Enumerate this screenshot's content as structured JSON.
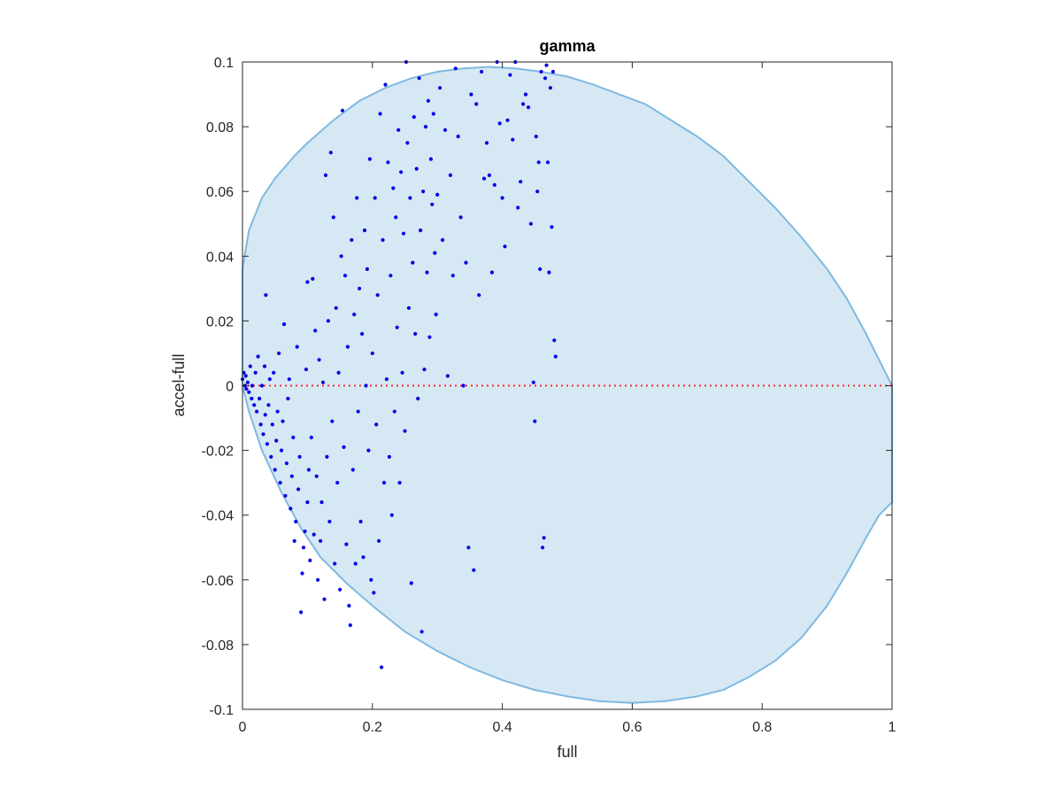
{
  "chart_data": {
    "type": "scatter",
    "title": "gamma",
    "xlabel": "full",
    "ylabel": "accel-full",
    "xlim": [
      0,
      1
    ],
    "ylim": [
      -0.1,
      0.1
    ],
    "xticks": [
      0,
      0.2,
      0.4,
      0.6,
      0.8,
      1
    ],
    "xtick_labels": [
      "0",
      "0.2",
      "0.4",
      "0.6",
      "0.8",
      "1"
    ],
    "yticks": [
      -0.1,
      -0.08,
      -0.06,
      -0.04,
      -0.02,
      0,
      0.02,
      0.04,
      0.06,
      0.08,
      0.1
    ],
    "ytick_labels": [
      "-0.1",
      "-0.08",
      "-0.06",
      "-0.04",
      "-0.02",
      "0",
      "0.02",
      "0.04",
      "0.06",
      "0.08",
      "0.1"
    ],
    "grid": false,
    "colors": {
      "points": "#0000e6",
      "region_fill": "#d6e8f4",
      "region_edge": "#7fb9e0",
      "zero_line": "#ff2a2a",
      "axes": "#262626"
    },
    "reference_line": {
      "y": 0,
      "style": "dotted"
    },
    "shaded_region": {
      "upper": [
        [
          0,
          0.036
        ],
        [
          0.01,
          0.048
        ],
        [
          0.03,
          0.058
        ],
        [
          0.05,
          0.064
        ],
        [
          0.08,
          0.071
        ],
        [
          0.1,
          0.075
        ],
        [
          0.14,
          0.082
        ],
        [
          0.18,
          0.088
        ],
        [
          0.22,
          0.092
        ],
        [
          0.26,
          0.095
        ],
        [
          0.3,
          0.097
        ],
        [
          0.34,
          0.098
        ],
        [
          0.38,
          0.0985
        ],
        [
          0.42,
          0.098
        ],
        [
          0.46,
          0.097
        ],
        [
          0.5,
          0.0955
        ],
        [
          0.54,
          0.093
        ],
        [
          0.58,
          0.09
        ],
        [
          0.62,
          0.087
        ],
        [
          0.66,
          0.082
        ],
        [
          0.7,
          0.077
        ],
        [
          0.74,
          0.071
        ],
        [
          0.78,
          0.063
        ],
        [
          0.82,
          0.055
        ],
        [
          0.86,
          0.046
        ],
        [
          0.9,
          0.036
        ],
        [
          0.93,
          0.027
        ],
        [
          0.96,
          0.016
        ],
        [
          0.98,
          0.008
        ],
        [
          0.995,
          0.002
        ],
        [
          1.0,
          0.0
        ]
      ],
      "lower": [
        [
          0,
          0.0
        ],
        [
          0.01,
          -0.008
        ],
        [
          0.03,
          -0.02
        ],
        [
          0.06,
          -0.033
        ],
        [
          0.09,
          -0.044
        ],
        [
          0.12,
          -0.053
        ],
        [
          0.16,
          -0.061
        ],
        [
          0.2,
          -0.068
        ],
        [
          0.25,
          -0.076
        ],
        [
          0.3,
          -0.082
        ],
        [
          0.35,
          -0.087
        ],
        [
          0.4,
          -0.091
        ],
        [
          0.45,
          -0.094
        ],
        [
          0.5,
          -0.096
        ],
        [
          0.55,
          -0.0975
        ],
        [
          0.6,
          -0.098
        ],
        [
          0.65,
          -0.0975
        ],
        [
          0.7,
          -0.096
        ],
        [
          0.74,
          -0.094
        ],
        [
          0.78,
          -0.09
        ],
        [
          0.82,
          -0.085
        ],
        [
          0.86,
          -0.078
        ],
        [
          0.9,
          -0.068
        ],
        [
          0.93,
          -0.058
        ],
        [
          0.96,
          -0.047
        ],
        [
          0.98,
          -0.04
        ],
        [
          1.0,
          -0.036
        ],
        [
          1.0,
          0.0
        ]
      ]
    },
    "points": [
      [
        0.0,
        0.002
      ],
      [
        0.002,
        0.004
      ],
      [
        0.004,
        0.0
      ],
      [
        0.005,
        0.003
      ],
      [
        0.006,
        -0.001
      ],
      [
        0.008,
        0.001
      ],
      [
        0.01,
        -0.002
      ],
      [
        0.012,
        0.006
      ],
      [
        0.014,
        -0.004
      ],
      [
        0.015,
        0.0
      ],
      [
        0.018,
        -0.006
      ],
      [
        0.02,
        0.004
      ],
      [
        0.022,
        -0.008
      ],
      [
        0.024,
        0.009
      ],
      [
        0.026,
        -0.004
      ],
      [
        0.028,
        -0.012
      ],
      [
        0.03,
        0.0
      ],
      [
        0.032,
        -0.015
      ],
      [
        0.034,
        0.006
      ],
      [
        0.035,
        -0.009
      ],
      [
        0.036,
        0.028
      ],
      [
        0.038,
        -0.018
      ],
      [
        0.04,
        -0.006
      ],
      [
        0.042,
        0.002
      ],
      [
        0.044,
        -0.022
      ],
      [
        0.046,
        -0.012
      ],
      [
        0.048,
        0.004
      ],
      [
        0.05,
        -0.026
      ],
      [
        0.052,
        -0.017
      ],
      [
        0.054,
        -0.008
      ],
      [
        0.056,
        0.01
      ],
      [
        0.058,
        -0.03
      ],
      [
        0.06,
        -0.02
      ],
      [
        0.062,
        -0.011
      ],
      [
        0.064,
        0.019
      ],
      [
        0.066,
        -0.034
      ],
      [
        0.068,
        -0.024
      ],
      [
        0.07,
        -0.004
      ],
      [
        0.072,
        0.002
      ],
      [
        0.074,
        -0.038
      ],
      [
        0.076,
        -0.028
      ],
      [
        0.078,
        -0.016
      ],
      [
        0.08,
        -0.048
      ],
      [
        0.082,
        -0.042
      ],
      [
        0.084,
        0.012
      ],
      [
        0.086,
        -0.032
      ],
      [
        0.088,
        -0.022
      ],
      [
        0.09,
        -0.07
      ],
      [
        0.092,
        -0.058
      ],
      [
        0.094,
        -0.05
      ],
      [
        0.096,
        -0.045
      ],
      [
        0.098,
        0.005
      ],
      [
        0.1,
        -0.036
      ],
      [
        0.1,
        0.032
      ],
      [
        0.102,
        -0.026
      ],
      [
        0.104,
        -0.054
      ],
      [
        0.106,
        -0.016
      ],
      [
        0.108,
        0.033
      ],
      [
        0.11,
        -0.046
      ],
      [
        0.112,
        0.017
      ],
      [
        0.114,
        -0.028
      ],
      [
        0.116,
        -0.06
      ],
      [
        0.118,
        0.008
      ],
      [
        0.12,
        -0.048
      ],
      [
        0.122,
        -0.036
      ],
      [
        0.124,
        0.001
      ],
      [
        0.126,
        -0.066
      ],
      [
        0.128,
        0.065
      ],
      [
        0.13,
        -0.022
      ],
      [
        0.132,
        0.02
      ],
      [
        0.134,
        -0.042
      ],
      [
        0.136,
        0.072
      ],
      [
        0.138,
        -0.011
      ],
      [
        0.14,
        0.052
      ],
      [
        0.142,
        -0.055
      ],
      [
        0.144,
        0.024
      ],
      [
        0.146,
        -0.03
      ],
      [
        0.148,
        0.004
      ],
      [
        0.15,
        -0.063
      ],
      [
        0.152,
        0.04
      ],
      [
        0.154,
        0.085
      ],
      [
        0.156,
        -0.019
      ],
      [
        0.158,
        0.034
      ],
      [
        0.16,
        -0.049
      ],
      [
        0.162,
        0.012
      ],
      [
        0.164,
        -0.068
      ],
      [
        0.166,
        -0.074
      ],
      [
        0.168,
        0.045
      ],
      [
        0.17,
        -0.026
      ],
      [
        0.172,
        0.022
      ],
      [
        0.174,
        -0.055
      ],
      [
        0.176,
        0.058
      ],
      [
        0.178,
        -0.008
      ],
      [
        0.18,
        0.03
      ],
      [
        0.182,
        -0.042
      ],
      [
        0.184,
        0.016
      ],
      [
        0.186,
        -0.053
      ],
      [
        0.188,
        0.048
      ],
      [
        0.19,
        0.0
      ],
      [
        0.192,
        0.036
      ],
      [
        0.194,
        -0.02
      ],
      [
        0.196,
        0.07
      ],
      [
        0.198,
        -0.06
      ],
      [
        0.2,
        0.01
      ],
      [
        0.202,
        -0.064
      ],
      [
        0.204,
        0.058
      ],
      [
        0.206,
        -0.012
      ],
      [
        0.208,
        0.028
      ],
      [
        0.21,
        -0.048
      ],
      [
        0.212,
        0.084
      ],
      [
        0.214,
        -0.087
      ],
      [
        0.216,
        0.045
      ],
      [
        0.218,
        -0.03
      ],
      [
        0.22,
        0.093
      ],
      [
        0.222,
        0.002
      ],
      [
        0.224,
        0.069
      ],
      [
        0.226,
        -0.022
      ],
      [
        0.228,
        0.034
      ],
      [
        0.23,
        -0.04
      ],
      [
        0.232,
        0.061
      ],
      [
        0.234,
        -0.008
      ],
      [
        0.236,
        0.052
      ],
      [
        0.238,
        0.018
      ],
      [
        0.24,
        0.079
      ],
      [
        0.242,
        -0.03
      ],
      [
        0.244,
        0.066
      ],
      [
        0.246,
        0.004
      ],
      [
        0.248,
        0.047
      ],
      [
        0.25,
        -0.014
      ],
      [
        0.252,
        0.1
      ],
      [
        0.254,
        0.075
      ],
      [
        0.256,
        0.024
      ],
      [
        0.258,
        0.058
      ],
      [
        0.26,
        -0.061
      ],
      [
        0.262,
        0.038
      ],
      [
        0.264,
        0.083
      ],
      [
        0.266,
        0.016
      ],
      [
        0.268,
        0.067
      ],
      [
        0.27,
        -0.004
      ],
      [
        0.272,
        0.095
      ],
      [
        0.274,
        0.048
      ],
      [
        0.276,
        -0.076
      ],
      [
        0.278,
        0.06
      ],
      [
        0.28,
        0.005
      ],
      [
        0.282,
        0.08
      ],
      [
        0.284,
        0.035
      ],
      [
        0.286,
        0.088
      ],
      [
        0.288,
        0.015
      ],
      [
        0.29,
        0.07
      ],
      [
        0.292,
        0.056
      ],
      [
        0.294,
        0.084
      ],
      [
        0.296,
        0.041
      ],
      [
        0.298,
        0.022
      ],
      [
        0.3,
        0.059
      ],
      [
        0.304,
        0.092
      ],
      [
        0.308,
        0.045
      ],
      [
        0.312,
        0.079
      ],
      [
        0.316,
        0.003
      ],
      [
        0.32,
        0.065
      ],
      [
        0.324,
        0.034
      ],
      [
        0.328,
        0.098
      ],
      [
        0.332,
        0.077
      ],
      [
        0.336,
        0.052
      ],
      [
        0.34,
        0.0
      ],
      [
        0.344,
        0.038
      ],
      [
        0.348,
        -0.05
      ],
      [
        0.352,
        0.09
      ],
      [
        0.356,
        -0.057
      ],
      [
        0.36,
        0.087
      ],
      [
        0.364,
        0.028
      ],
      [
        0.368,
        0.097
      ],
      [
        0.372,
        0.064
      ],
      [
        0.376,
        0.075
      ],
      [
        0.38,
        0.065
      ],
      [
        0.384,
        0.035
      ],
      [
        0.388,
        0.062
      ],
      [
        0.392,
        0.1
      ],
      [
        0.396,
        0.081
      ],
      [
        0.4,
        0.058
      ],
      [
        0.404,
        0.043
      ],
      [
        0.408,
        0.082
      ],
      [
        0.412,
        0.096
      ],
      [
        0.416,
        0.076
      ],
      [
        0.42,
        0.1
      ],
      [
        0.424,
        0.055
      ],
      [
        0.428,
        0.063
      ],
      [
        0.432,
        0.087
      ],
      [
        0.436,
        0.09
      ],
      [
        0.44,
        0.086
      ],
      [
        0.444,
        0.05
      ],
      [
        0.448,
        0.001
      ],
      [
        0.45,
        -0.011
      ],
      [
        0.452,
        0.077
      ],
      [
        0.454,
        0.06
      ],
      [
        0.456,
        0.069
      ],
      [
        0.458,
        0.036
      ],
      [
        0.46,
        0.097
      ],
      [
        0.462,
        -0.05
      ],
      [
        0.464,
        -0.047
      ],
      [
        0.466,
        0.095
      ],
      [
        0.468,
        0.099
      ],
      [
        0.47,
        0.069
      ],
      [
        0.472,
        0.035
      ],
      [
        0.474,
        0.092
      ],
      [
        0.476,
        0.049
      ],
      [
        0.478,
        0.097
      ],
      [
        0.48,
        0.014
      ],
      [
        0.482,
        0.009
      ]
    ]
  }
}
